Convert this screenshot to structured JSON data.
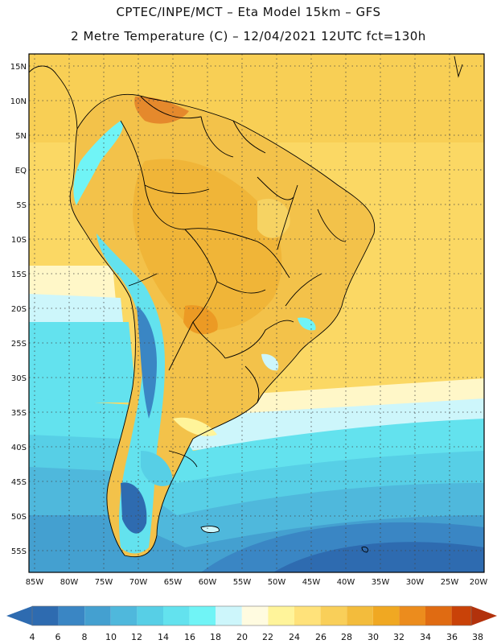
{
  "header": {
    "line1": "CPTEC/INPE/MCT –  Eta Model 15km – GFS",
    "line2": "2 Metre Temperature (C) – 12/04/2021 12UTC fct=130h"
  },
  "map": {
    "lat_labels": [
      "15N",
      "10N",
      "5N",
      "EQ",
      "5S",
      "10S",
      "15S",
      "20S",
      "25S",
      "30S",
      "35S",
      "40S",
      "45S",
      "50S",
      "55S"
    ],
    "lon_labels": [
      "85W",
      "80W",
      "75W",
      "70W",
      "65W",
      "60W",
      "55W",
      "50W",
      "45W",
      "40W",
      "35W",
      "30W",
      "25W",
      "20W"
    ]
  },
  "colorbar": {
    "ticks": [
      "4",
      "6",
      "8",
      "10",
      "12",
      "14",
      "16",
      "18",
      "20",
      "22",
      "24",
      "26",
      "28",
      "30",
      "32",
      "34",
      "36",
      "38"
    ],
    "colors": [
      "#2e6bb0",
      "#3a86c4",
      "#44a0d0",
      "#4fb8dc",
      "#57cfe6",
      "#63e2ee",
      "#70f4f6",
      "#cdf6fb",
      "#fffbe0",
      "#fff49a",
      "#ffe27a",
      "#f9cf59",
      "#f3bc3c",
      "#f0a822",
      "#ec8c1d",
      "#e06b12",
      "#c94208",
      "#b2320c"
    ]
  }
}
